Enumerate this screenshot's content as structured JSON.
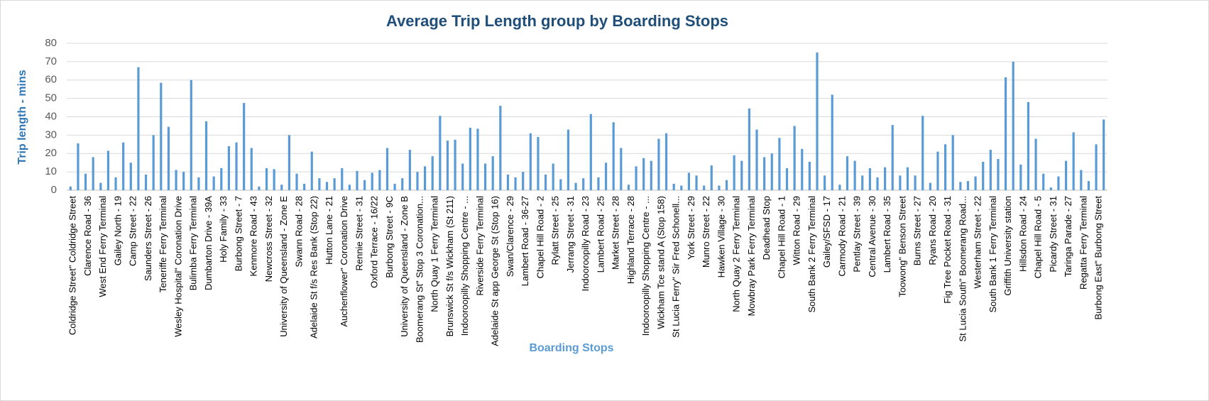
{
  "chart_data": {
    "type": "bar",
    "title": "Average Trip Length group by Boarding Stops",
    "x_label": "Boarding Stops",
    "y_label": "Trip length - mins",
    "color": "#5b9bd5",
    "grid": true,
    "ylim": [
      0,
      80
    ],
    "yticks": [
      0,
      10,
      20,
      30,
      40,
      50,
      60,
      70,
      80
    ],
    "categories": [
      "Coldridge Street\" Coldridge Street",
      null,
      "Clarence Road - 36",
      null,
      "West End Ferry Terminal",
      null,
      "Gailey North - 19",
      null,
      "Camp Street - 22",
      null,
      "Saunders Street - 26",
      null,
      "Teneriffe Ferry Terminal",
      null,
      "Wesley Hospital\" Coronation Drive",
      null,
      "Bulimba Ferry Terminal",
      null,
      "Dumbarton Drive - 39A",
      null,
      "Holy Family - 33",
      null,
      "Burbong Street - 7",
      null,
      "Kenmore Road - 43",
      null,
      "Newcross Street - 32",
      null,
      "University of Queensland - Zone E",
      null,
      "Swann Road - 28",
      null,
      "Adelaide St f/s Res Bank (Stop 22)",
      null,
      "Hutton Lane - 21",
      null,
      "Auchenflower\" Coronation Drive",
      null,
      "Rennie Street - 31",
      null,
      "Oxford Terrace - 16/22",
      null,
      "Burbong Street - 9C",
      null,
      "University of Queensland - Zone B",
      null,
      "Boomerang St\" Stop 3 Coronation...",
      null,
      "North Quay 1 Ferry Terminal",
      null,
      "Brunswick St f/s Wickham (St 211)",
      null,
      "Indooroopilly Shopping Centre - ...",
      null,
      "Riverside Ferry Terminal",
      null,
      "Adelaide St app George St (Stop 16)",
      null,
      "Swan/Clarence - 29",
      null,
      "Lambert Road - 36-27",
      null,
      "Chapel Hill Road - 2",
      null,
      "Rylatt Street - 25",
      null,
      "Jerrang Street - 31",
      null,
      "Indooroopilly Road - 23",
      null,
      "Lambert Road - 25",
      null,
      "Market Street - 28",
      null,
      "Highland Terrace - 28",
      null,
      "Indooroopilly Shopping Centre - ...",
      null,
      "Wickham Tce stand A (Stop 158)",
      null,
      "St Lucia Ferry\" Sir Fred Schonell...",
      null,
      "York Street - 29",
      null,
      "Munro Street - 22",
      null,
      "Hawken Village - 30",
      null,
      "North Quay 2 Ferry Terminal",
      null,
      "Mowbray Park Ferry Terminal",
      null,
      "Deadhead Stop",
      null,
      "Chapel Hill Road - 1",
      null,
      "Witton Road - 29",
      null,
      "South Bank 2 Ferry Terminal",
      null,
      "Gailey/SFSD - 17",
      null,
      "Carmody Road - 21",
      null,
      "Pentlay Street - 39",
      null,
      "Central Avenue - 30",
      null,
      "Lambert Road - 35",
      null,
      "Toowong\" Benson Street",
      null,
      "Burns Street - 27",
      null,
      "Ryans Road - 20",
      null,
      "Fig Tree Pocket Road - 31",
      null,
      "St Lucia South\" Boomerang Road...",
      null,
      "Westerham Street - 22",
      null,
      "South Bank 1 Ferry Terminal",
      null,
      "Griffith University station",
      null,
      "Hillsdon Road - 24",
      null,
      "Chapel Hill Road - 5",
      null,
      "Picardy Street - 31",
      null,
      "Taringa Parade - 27",
      null,
      "Regatta Ferry Terminal",
      null,
      "Burbong East\" Burbong Street",
      null
    ],
    "values": [
      2,
      25.5,
      9,
      18,
      4,
      21.5,
      7,
      26,
      15,
      67,
      8.5,
      30,
      58.5,
      34.5,
      11,
      10,
      60,
      7,
      37.5,
      7.5,
      12,
      24,
      26,
      47.5,
      23,
      2,
      12,
      11.5,
      3,
      30,
      9,
      3.5,
      21,
      6.5,
      4.5,
      6.5,
      12,
      3,
      10.5,
      5.5,
      9.5,
      11,
      23,
      3.5,
      6.5,
      22,
      10,
      13,
      18.5,
      40.5,
      27,
      27.5,
      14.5,
      34,
      33.5,
      14.5,
      18.5,
      46,
      8.5,
      7,
      10,
      31,
      29,
      8.5,
      14.5,
      6,
      33,
      4,
      6.5,
      41.5,
      7,
      15,
      37,
      23,
      3,
      13,
      17.5,
      16,
      28,
      31,
      3.5,
      2.5,
      9.5,
      8,
      2.5,
      13.5,
      2.5,
      5.5,
      19,
      16,
      44.5,
      33,
      18,
      20,
      28.5,
      12,
      35,
      22.5,
      15.5,
      75,
      8,
      52,
      3,
      18.5,
      16,
      8,
      12,
      7,
      12.5,
      35.5,
      8,
      12.5,
      8,
      40.5,
      4,
      21,
      25,
      30,
      4.5,
      5,
      7.5,
      15.5,
      22,
      17,
      61.5,
      70,
      14,
      48,
      28,
      9,
      1.5,
      7.5,
      16,
      31.5,
      11,
      5,
      25,
      38.5
    ]
  }
}
